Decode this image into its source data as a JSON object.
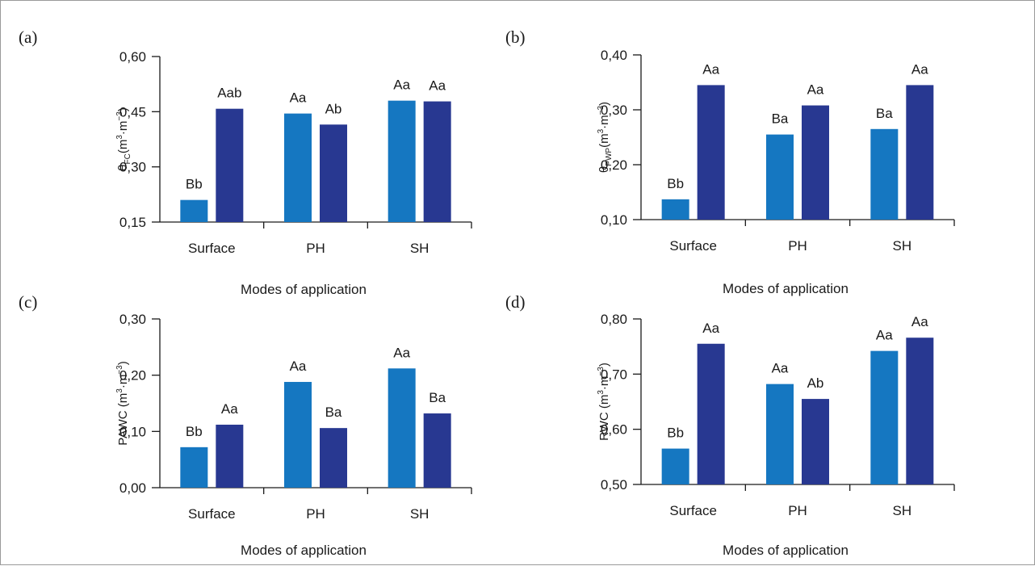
{
  "colors": {
    "series1": "#1577c1",
    "series2": "#283891"
  },
  "chart_data": [
    {
      "type": "bar",
      "panel": "(a)",
      "ylabel_main": "θ",
      "ylabel_sub": "FC",
      "ylabel_unit_pre": "(m",
      "ylabel_unit_mid": "·m",
      "ylabel_unit_post": ")",
      "ylabel_sup1": "3",
      "ylabel_sup2": "−3",
      "xlabel": "Modes of application",
      "categories": [
        "Surface",
        "PH",
        "SH"
      ],
      "ylim": [
        0.15,
        0.6
      ],
      "yticks": [
        0.15,
        0.3,
        0.45,
        0.6
      ],
      "ytick_labels": [
        "0,15",
        "0,30",
        "0,45",
        "0,60"
      ],
      "series": [
        {
          "values": [
            0.21,
            0.445,
            0.48
          ],
          "labels": [
            "Bb",
            "Aa",
            "Aa"
          ]
        },
        {
          "values": [
            0.458,
            0.415,
            0.478
          ],
          "labels": [
            "Aab",
            "Ab",
            "Aa"
          ]
        }
      ]
    },
    {
      "type": "bar",
      "panel": "(b)",
      "ylabel_main": "θ",
      "ylabel_sub": "PWP",
      "ylabel_unit_pre": "(m",
      "ylabel_unit_mid": "·m",
      "ylabel_unit_post": ")",
      "ylabel_sup1": "3",
      "ylabel_sup2": "−3",
      "xlabel": "Modes of application",
      "categories": [
        "Surface",
        "PH",
        "SH"
      ],
      "ylim": [
        0.1,
        0.4
      ],
      "yticks": [
        0.1,
        0.2,
        0.3,
        0.4
      ],
      "ytick_labels": [
        "0,10",
        "0,20",
        "0,30",
        "0,40"
      ],
      "series": [
        {
          "values": [
            0.137,
            0.255,
            0.265
          ],
          "labels": [
            "Bb",
            "Ba",
            "Ba"
          ]
        },
        {
          "values": [
            0.345,
            0.308,
            0.345
          ],
          "labels": [
            "Aa",
            "Aa",
            "Aa"
          ]
        }
      ]
    },
    {
      "type": "bar",
      "panel": "(c)",
      "ylabel_main": "PAWC",
      "ylabel_sub": "",
      "ylabel_unit_pre": " (m",
      "ylabel_unit_mid": "·m",
      "ylabel_unit_post": ")",
      "ylabel_sup1": "3",
      "ylabel_sup2": "−3",
      "xlabel": "Modes of application",
      "categories": [
        "Surface",
        "PH",
        "SH"
      ],
      "ylim": [
        0.0,
        0.3
      ],
      "yticks": [
        0.0,
        0.1,
        0.2,
        0.3
      ],
      "ytick_labels": [
        "0,00",
        "0,10",
        "0,20",
        "0,30"
      ],
      "series": [
        {
          "values": [
            0.072,
            0.188,
            0.212
          ],
          "labels": [
            "Bb",
            "Aa",
            "Aa"
          ]
        },
        {
          "values": [
            0.112,
            0.106,
            0.132
          ],
          "labels": [
            "Aa",
            "Ba",
            "Ba"
          ]
        }
      ]
    },
    {
      "type": "bar",
      "panel": "(d)",
      "ylabel_main": "RWC",
      "ylabel_sub": "",
      "ylabel_unit_pre": " (m",
      "ylabel_unit_mid": "·m",
      "ylabel_unit_post": ")",
      "ylabel_sup1": "3",
      "ylabel_sup2": "−3",
      "xlabel": "Modes of application",
      "categories": [
        "Surface",
        "PH",
        "SH"
      ],
      "ylim": [
        0.5,
        0.8
      ],
      "yticks": [
        0.5,
        0.6,
        0.7,
        0.8
      ],
      "ytick_labels": [
        "0,50",
        "0,60",
        "0,70",
        "0,80"
      ],
      "series": [
        {
          "values": [
            0.565,
            0.682,
            0.742
          ],
          "labels": [
            "Bb",
            "Aa",
            "Aa"
          ]
        },
        {
          "values": [
            0.755,
            0.655,
            0.766
          ],
          "labels": [
            "Aa",
            "Ab",
            "Aa"
          ]
        }
      ]
    }
  ]
}
